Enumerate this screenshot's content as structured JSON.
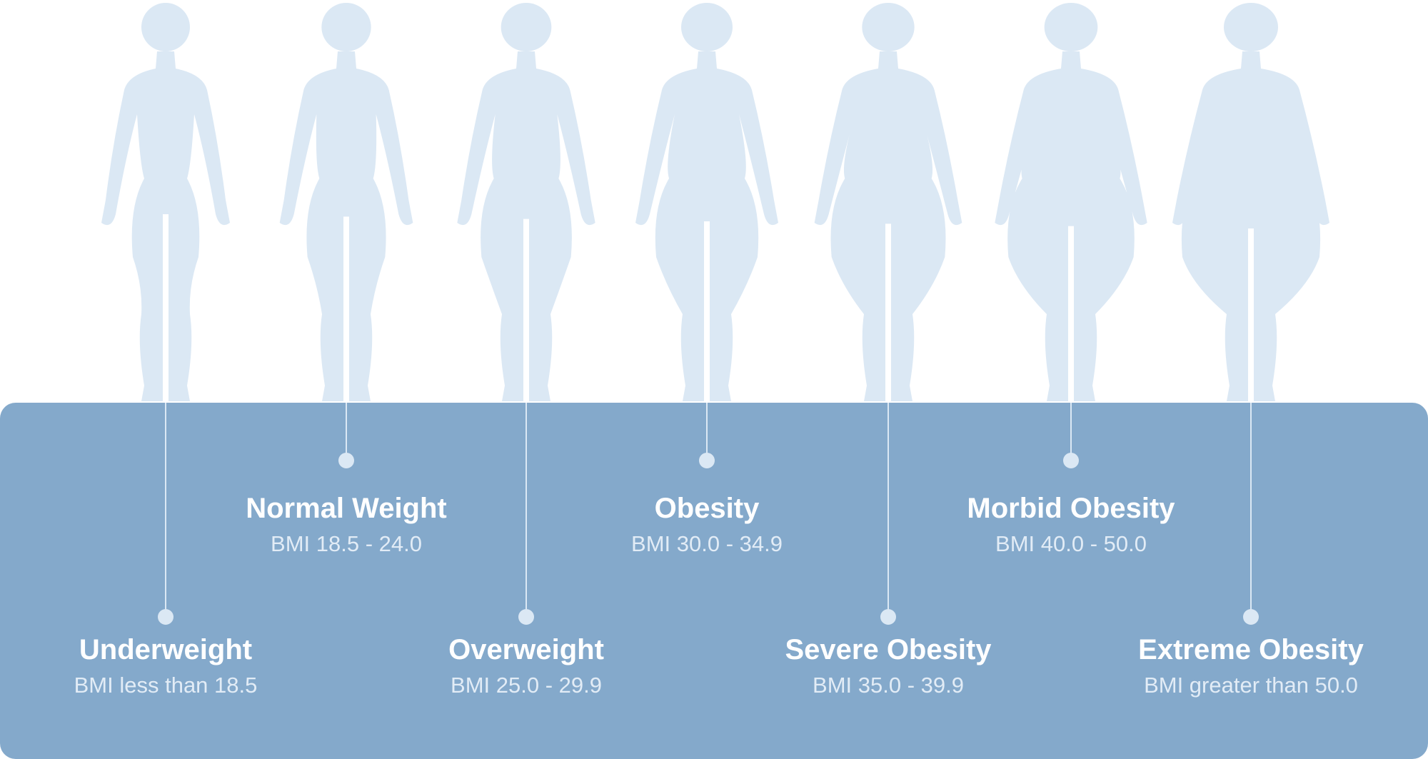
{
  "colors": {
    "panel": "#84a9cb",
    "silhouette": "#dbe8f4",
    "connector": "#dbe8f4",
    "title": "#ffffff",
    "subtitle": "#e2ecf6"
  },
  "categories": [
    {
      "id": "underweight",
      "title": "Underweight",
      "range": "BMI less than 18.5",
      "level": "low"
    },
    {
      "id": "normal-weight",
      "title": "Normal Weight",
      "range": "BMI 18.5 - 24.0",
      "level": "high"
    },
    {
      "id": "overweight",
      "title": "Overweight",
      "range": "BMI 25.0 - 29.9",
      "level": "low"
    },
    {
      "id": "obesity",
      "title": "Obesity",
      "range": "BMI 30.0 - 34.9",
      "level": "high"
    },
    {
      "id": "severe-obesity",
      "title": "Severe Obesity",
      "range": "BMI 35.0 - 39.9",
      "level": "low"
    },
    {
      "id": "morbid-obesity",
      "title": "Morbid Obesity",
      "range": "BMI 40.0 - 50.0",
      "level": "high"
    },
    {
      "id": "extreme-obesity",
      "title": "Extreme Obesity",
      "range": "BMI greater than 50.0",
      "level": "low"
    }
  ]
}
